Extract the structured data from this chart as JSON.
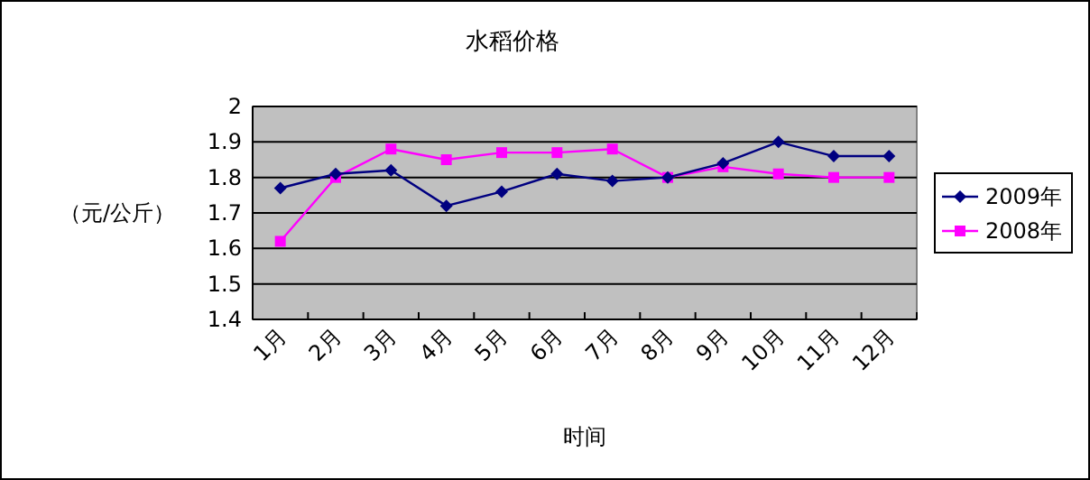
{
  "chart_data": {
    "type": "line",
    "title": "水稻价格",
    "xlabel": "时间",
    "ylabel": "（元/公斤）",
    "categories": [
      "1月",
      "2月",
      "3月",
      "4月",
      "5月",
      "6月",
      "7月",
      "8月",
      "9月",
      "10月",
      "11月",
      "12月"
    ],
    "series": [
      {
        "name": "2009年",
        "color": "#000080",
        "marker": "diamond",
        "values": [
          1.77,
          1.81,
          1.82,
          1.72,
          1.76,
          1.81,
          1.79,
          1.8,
          1.84,
          1.9,
          1.86,
          1.86
        ]
      },
      {
        "name": "2008年",
        "color": "#ff00ff",
        "marker": "square",
        "values": [
          1.62,
          1.8,
          1.88,
          1.85,
          1.87,
          1.87,
          1.88,
          1.8,
          1.83,
          1.81,
          1.8,
          1.8
        ]
      }
    ],
    "ylim": [
      1.4,
      2
    ],
    "yticks": [
      1.4,
      1.5,
      1.6,
      1.7,
      1.8,
      1.9,
      2
    ],
    "grid": "y",
    "legend": "right"
  }
}
